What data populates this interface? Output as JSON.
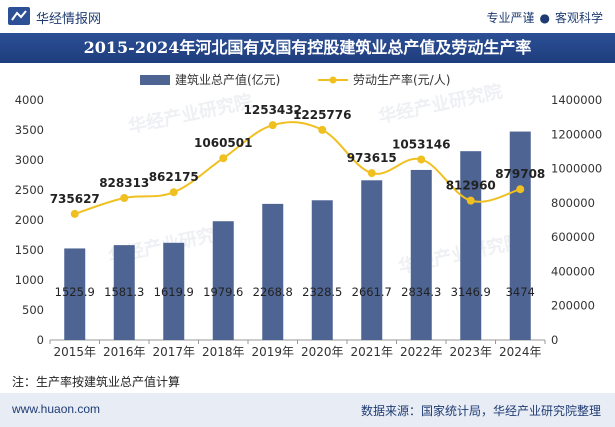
{
  "header": {
    "brand": "华经情报网",
    "tag_left": "专业严谨",
    "tag_sep": "●",
    "tag_right": "客观科学"
  },
  "title": "2015-2024年河北国有及国有控股建筑业总产值及劳动生产率",
  "note": "注：生产率按建筑业总产值计算",
  "footer": {
    "site": "www.huaon.com",
    "source": "数据来源：国家统计局，华经产业研究院整理"
  },
  "watermark": "华经产业研究院",
  "colors": {
    "bar": "#4e6493",
    "line": "#f0c020",
    "title_bg": "#24468a",
    "brand_text": "#1f3b73"
  },
  "chart_data": {
    "type": "bar",
    "categories": [
      "2015年",
      "2016年",
      "2017年",
      "2018年",
      "2019年",
      "2020年",
      "2021年",
      "2022年",
      "2023年",
      "2024年"
    ],
    "series": [
      {
        "name": "建筑业总产值(亿元)",
        "type": "bar",
        "axis": "left",
        "values": [
          1525.9,
          1581.3,
          1619.9,
          1979.6,
          2268.8,
          2328.5,
          2661.7,
          2834.3,
          3146.9,
          3474
        ],
        "labels": [
          "1525.9",
          "1581.3",
          "1619.9",
          "1979.6",
          "2268.8",
          "2328.5",
          "2661.7",
          "2834.3",
          "3146.9",
          "3474"
        ]
      },
      {
        "name": "劳动生产率(元/人)",
        "type": "line",
        "axis": "right",
        "values": [
          735627,
          828313,
          862175,
          1060501,
          1253432,
          1225776,
          973615,
          1053146,
          812960,
          879708
        ],
        "labels": [
          "735627",
          "828313",
          "862175",
          "1060501",
          "1253432",
          "1225776",
          "973615",
          "1053146",
          "812960",
          "879708"
        ]
      }
    ],
    "y_left": {
      "min": 0,
      "max": 4000,
      "ticks": [
        "0",
        "500",
        "1000",
        "1500",
        "2000",
        "2500",
        "3000",
        "3500",
        "4000"
      ]
    },
    "y_right": {
      "min": 0,
      "max": 1400000,
      "ticks": [
        "0",
        "200000",
        "400000",
        "600000",
        "800000",
        "1000000",
        "1200000",
        "1400000"
      ]
    },
    "legend_position": "top-center",
    "grid": false
  }
}
